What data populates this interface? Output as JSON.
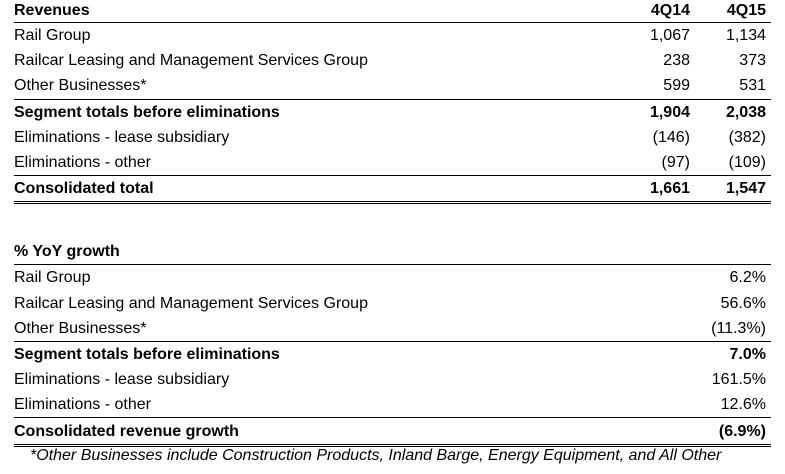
{
  "revenues": {
    "heading": "Revenues",
    "col_a": "4Q14",
    "col_b": "4Q15",
    "rows": [
      {
        "label": "Rail Group",
        "a": "1,067",
        "b": "1,134"
      },
      {
        "label": "Railcar Leasing and Management Services Group",
        "a": "238",
        "b": "373"
      },
      {
        "label": "Other Businesses*",
        "a": "599",
        "b": "531"
      }
    ],
    "segment_totals": {
      "label": "Segment totals before eliminations",
      "a": "1,904",
      "b": "2,038"
    },
    "elims": [
      {
        "label": "Eliminations - lease subsidiary",
        "a": "(146)",
        "b": "(382)"
      },
      {
        "label": "Eliminations - other",
        "a": "(97)",
        "b": "(109)"
      }
    ],
    "total": {
      "label": "Consolidated total",
      "a": "1,661",
      "b": "1,547"
    }
  },
  "growth": {
    "heading": "% YoY growth",
    "rows": [
      {
        "label": "Rail Group",
        "v": "6.2%"
      },
      {
        "label": "Railcar Leasing and Management Services Group",
        "v": "56.6%"
      },
      {
        "label": "Other Businesses*",
        "v": "(11.3%)"
      }
    ],
    "segment_totals": {
      "label": "Segment totals before eliminations",
      "v": "7.0%"
    },
    "elims": [
      {
        "label": "Eliminations - lease subsidiary",
        "v": "161.5%"
      },
      {
        "label": "Eliminations - other",
        "v": "12.6%"
      }
    ],
    "total": {
      "label": "Consolidated revenue growth",
      "v": "(6.9%)"
    }
  },
  "footnote": "*Other Businesses include Construction Products, Inland Barge, Energy Equipment, and All Other"
}
